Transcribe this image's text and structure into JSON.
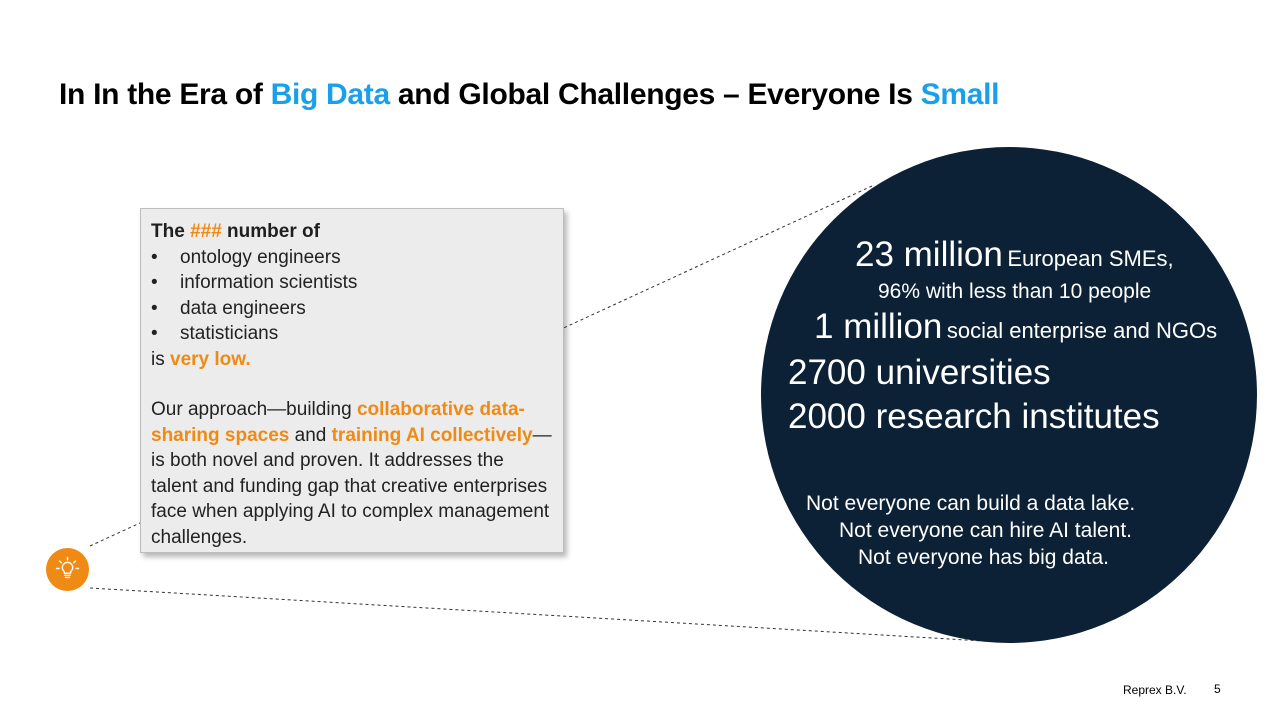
{
  "title": {
    "part1": "In In the Era of ",
    "highlight1": "Big Data",
    "part2": " and Global Challenges – Everyone Is ",
    "highlight2": "Small"
  },
  "infobox": {
    "lead_prefix": "The ",
    "lead_hash": "###",
    "lead_suffix": " number of",
    "bullets": [
      "ontology engineers",
      "information scientists",
      "data engineers",
      "statisticians"
    ],
    "is_prefix": "is ",
    "is_highlight": "very low.",
    "approach_prefix": "Our approach—building ",
    "approach_hl1": "collaborative data-sharing spaces",
    "approach_mid": " and ",
    "approach_hl2": "training AI collectively",
    "approach_suffix": "—is both novel and proven. It addresses the talent and funding gap that creative enterprises face when applying AI to complex management challenges."
  },
  "icon": {
    "name": "lightbulb-icon",
    "color": "#ef8a14"
  },
  "circle": {
    "color": "#0c2135",
    "sme_big": "23 million",
    "sme_small": "European SMEs,",
    "sme_line2": "96% with less than 10 people",
    "social_big": "1 million",
    "social_small": "social enterprise and NGOs",
    "universities_num": "2700",
    "universities_label": "universities",
    "research": "2000 research institutes",
    "foot1": "Not everyone can build a data lake.",
    "foot2": "Not everyone can hire AI talent.",
    "foot3": "Not everyone has big data."
  },
  "footer": {
    "company": "Reprex B.V.",
    "page": "5"
  },
  "colors": {
    "accent_blue": "#1aa0e8",
    "accent_orange": "#ef8a14"
  }
}
